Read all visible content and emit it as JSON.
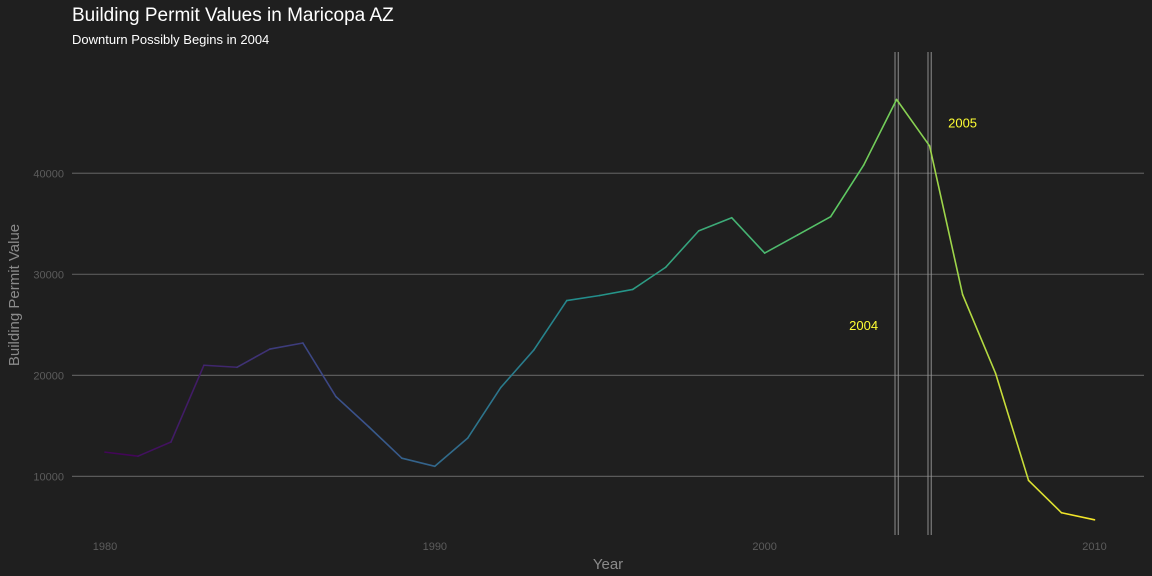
{
  "chart_data": {
    "type": "line",
    "title": "Building Permit Values in Maricopa AZ",
    "subtitle": "Downturn Possibly Begins in 2004",
    "xlabel": "Year",
    "ylabel": "Building Permit Value",
    "xlim": [
      1979,
      2011.5
    ],
    "ylim": [
      4200,
      52000
    ],
    "x_ticks": [
      1980,
      1990,
      2000,
      2010
    ],
    "y_ticks": [
      10000,
      20000,
      30000,
      40000
    ],
    "grid": "horizontal major lines",
    "legend": "none",
    "line_color": "viridis gradient by year",
    "series": [
      {
        "x": [
          1980,
          1981,
          1982,
          1983,
          1984,
          1985,
          1986,
          1987,
          1988,
          1989,
          1990,
          1991,
          1992,
          1993,
          1994,
          1995,
          1996,
          1997,
          1998,
          1999,
          2000,
          2001,
          2002,
          2003,
          2004,
          2005,
          2006,
          2007,
          2008,
          2009,
          2010
        ],
        "values": [
          12400,
          12000,
          13400,
          21000,
          20800,
          22600,
          23200,
          17900,
          14900,
          11800,
          11000,
          13800,
          18800,
          22500,
          27400,
          27900,
          28500,
          30700,
          34300,
          35600,
          32100,
          33900,
          35700,
          40800,
          47300,
          42700,
          28000,
          20200,
          9600,
          6400,
          5700
        ]
      }
    ],
    "vlines": [
      2004,
      2005
    ],
    "annotations": [
      {
        "text": "2004",
        "x": 2003,
        "y": 25000
      },
      {
        "text": "2005",
        "x": 2006,
        "y": 45000
      }
    ],
    "annotation_color": "#ffff33",
    "background_color": "#1f1f1f",
    "grid_color": "#5a5a5a"
  }
}
